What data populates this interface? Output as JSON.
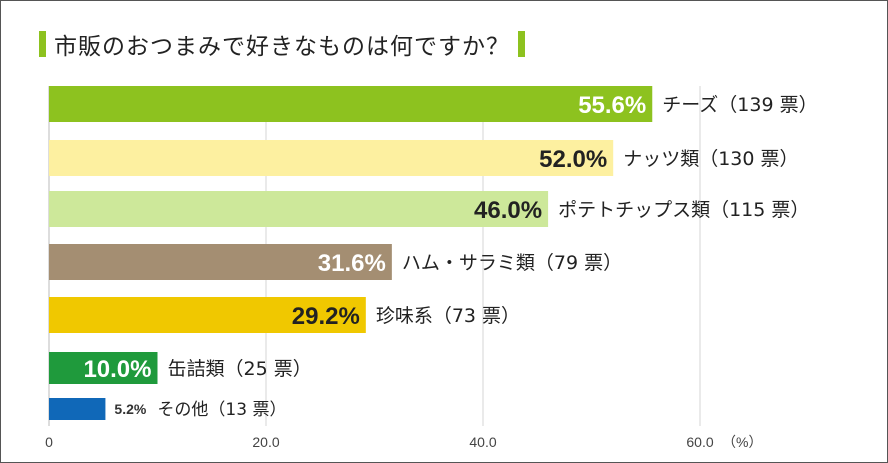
{
  "chart_data": {
    "type": "bar",
    "orientation": "horizontal",
    "title": "市販のおつまみで好きなものは何ですか？",
    "xlabel": "（%）",
    "xlim": [
      0,
      75
    ],
    "xticks": [
      0,
      20,
      40,
      60
    ],
    "xtick_labels": [
      "0",
      "20.0",
      "40.0",
      "60.0"
    ],
    "grid": true,
    "categories": [
      "チーズ（139 票）",
      "ナッツ類（130 票）",
      "ポテトチップス類（115 票）",
      "ハム・サラミ類（79 票）",
      "珍味系（73 票）",
      "缶詰類（25 票）",
      "その他（13 票）"
    ],
    "values": [
      55.6,
      52.0,
      46.0,
      31.6,
      29.2,
      10.0,
      5.2
    ],
    "value_labels": [
      "55.6%",
      "52.0%",
      "46.0%",
      "31.6%",
      "29.2%",
      "10.0%",
      "5.2%"
    ],
    "colors": [
      "#8dc21f",
      "#fdf0a0",
      "#cde89a",
      "#a48e72",
      "#f0c800",
      "#1f9a3c",
      "#1068b8"
    ],
    "label_colors": [
      "#ffffff",
      "#222222",
      "#222222",
      "#ffffff",
      "#222222",
      "#ffffff",
      "#333333"
    ],
    "accent": "#8dc21f"
  }
}
